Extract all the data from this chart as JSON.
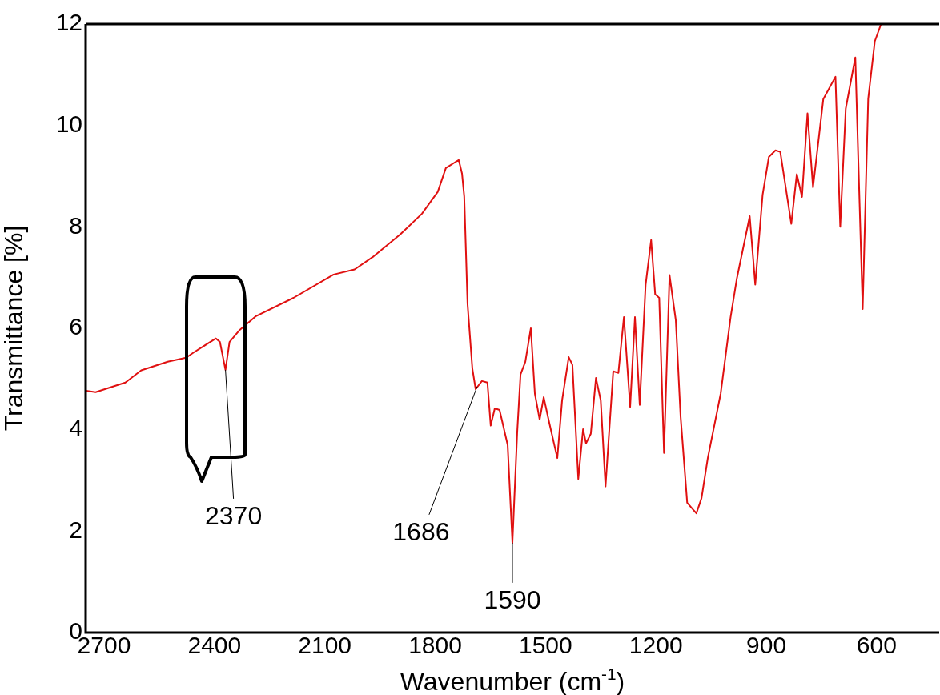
{
  "chart_data": {
    "type": "line",
    "xlabel": "Wavenumber (cm$^{-1}$)",
    "ylabel": "Transmittance [%]",
    "xlim": [
      2750,
      430
    ],
    "ylim": [
      0,
      12
    ],
    "xticks": [
      2700,
      2400,
      2100,
      1800,
      1500,
      1200,
      900,
      600
    ],
    "yticks": [
      0,
      2,
      4,
      6,
      8,
      10,
      12
    ],
    "grid": false,
    "legend": false,
    "marker": "none",
    "line_style": "solid",
    "series": [
      {
        "color": "#e01010",
        "x": [
          2749,
          2723,
          2642,
          2599,
          2527,
          2477,
          2455,
          2396,
          2385,
          2370,
          2359,
          2331,
          2287,
          2185,
          2076,
          2019,
          1967,
          1895,
          1836,
          1793,
          1771,
          1736,
          1727,
          1721,
          1712,
          1699,
          1690,
          1673,
          1658,
          1649,
          1638,
          1625,
          1603,
          1590,
          1577,
          1568,
          1555,
          1540,
          1529,
          1516,
          1505,
          1490,
          1468,
          1455,
          1437,
          1427,
          1411,
          1398,
          1390,
          1377,
          1363,
          1350,
          1337,
          1316,
          1302,
          1287,
          1270,
          1257,
          1244,
          1228,
          1213,
          1202,
          1191,
          1178,
          1163,
          1146,
          1133,
          1115,
          1090,
          1076,
          1059,
          1024,
          997,
          980,
          945,
          930,
          910,
          893,
          875,
          862,
          832,
          817,
          803,
          788,
          773,
          745,
          712,
          699,
          684,
          658,
          638,
          623,
          605,
          588
        ],
        "values": [
          4.77,
          4.74,
          4.93,
          5.17,
          5.34,
          5.42,
          5.53,
          5.8,
          5.73,
          5.18,
          5.73,
          5.97,
          6.24,
          6.6,
          7.06,
          7.16,
          7.42,
          7.85,
          8.26,
          8.69,
          9.16,
          9.32,
          9.05,
          8.6,
          6.48,
          5.21,
          4.8,
          4.96,
          4.93,
          4.08,
          4.42,
          4.39,
          3.7,
          1.77,
          3.95,
          5.09,
          5.34,
          6.0,
          4.71,
          4.2,
          4.64,
          4.14,
          3.44,
          4.58,
          5.43,
          5.28,
          3.03,
          4.01,
          3.73,
          3.92,
          5.02,
          4.58,
          2.88,
          5.15,
          5.12,
          6.22,
          4.45,
          6.22,
          4.49,
          6.86,
          7.74,
          6.67,
          6.6,
          3.54,
          7.05,
          6.16,
          4.27,
          2.56,
          2.35,
          2.65,
          3.44,
          4.71,
          6.22,
          6.98,
          8.21,
          6.86,
          8.63,
          9.38,
          9.51,
          9.48,
          8.06,
          9.04,
          8.59,
          10.24,
          8.78,
          10.52,
          10.96,
          8.0,
          10.33,
          11.34,
          6.38,
          10.52,
          11.66,
          12.0
        ]
      }
    ],
    "annotations": [
      {
        "text": "2370",
        "x": 2370,
        "y": 5.18
      },
      {
        "text": "1686",
        "x": 1686,
        "y": 4.85
      },
      {
        "text": "1590",
        "x": 1590,
        "y": 1.77
      }
    ]
  }
}
